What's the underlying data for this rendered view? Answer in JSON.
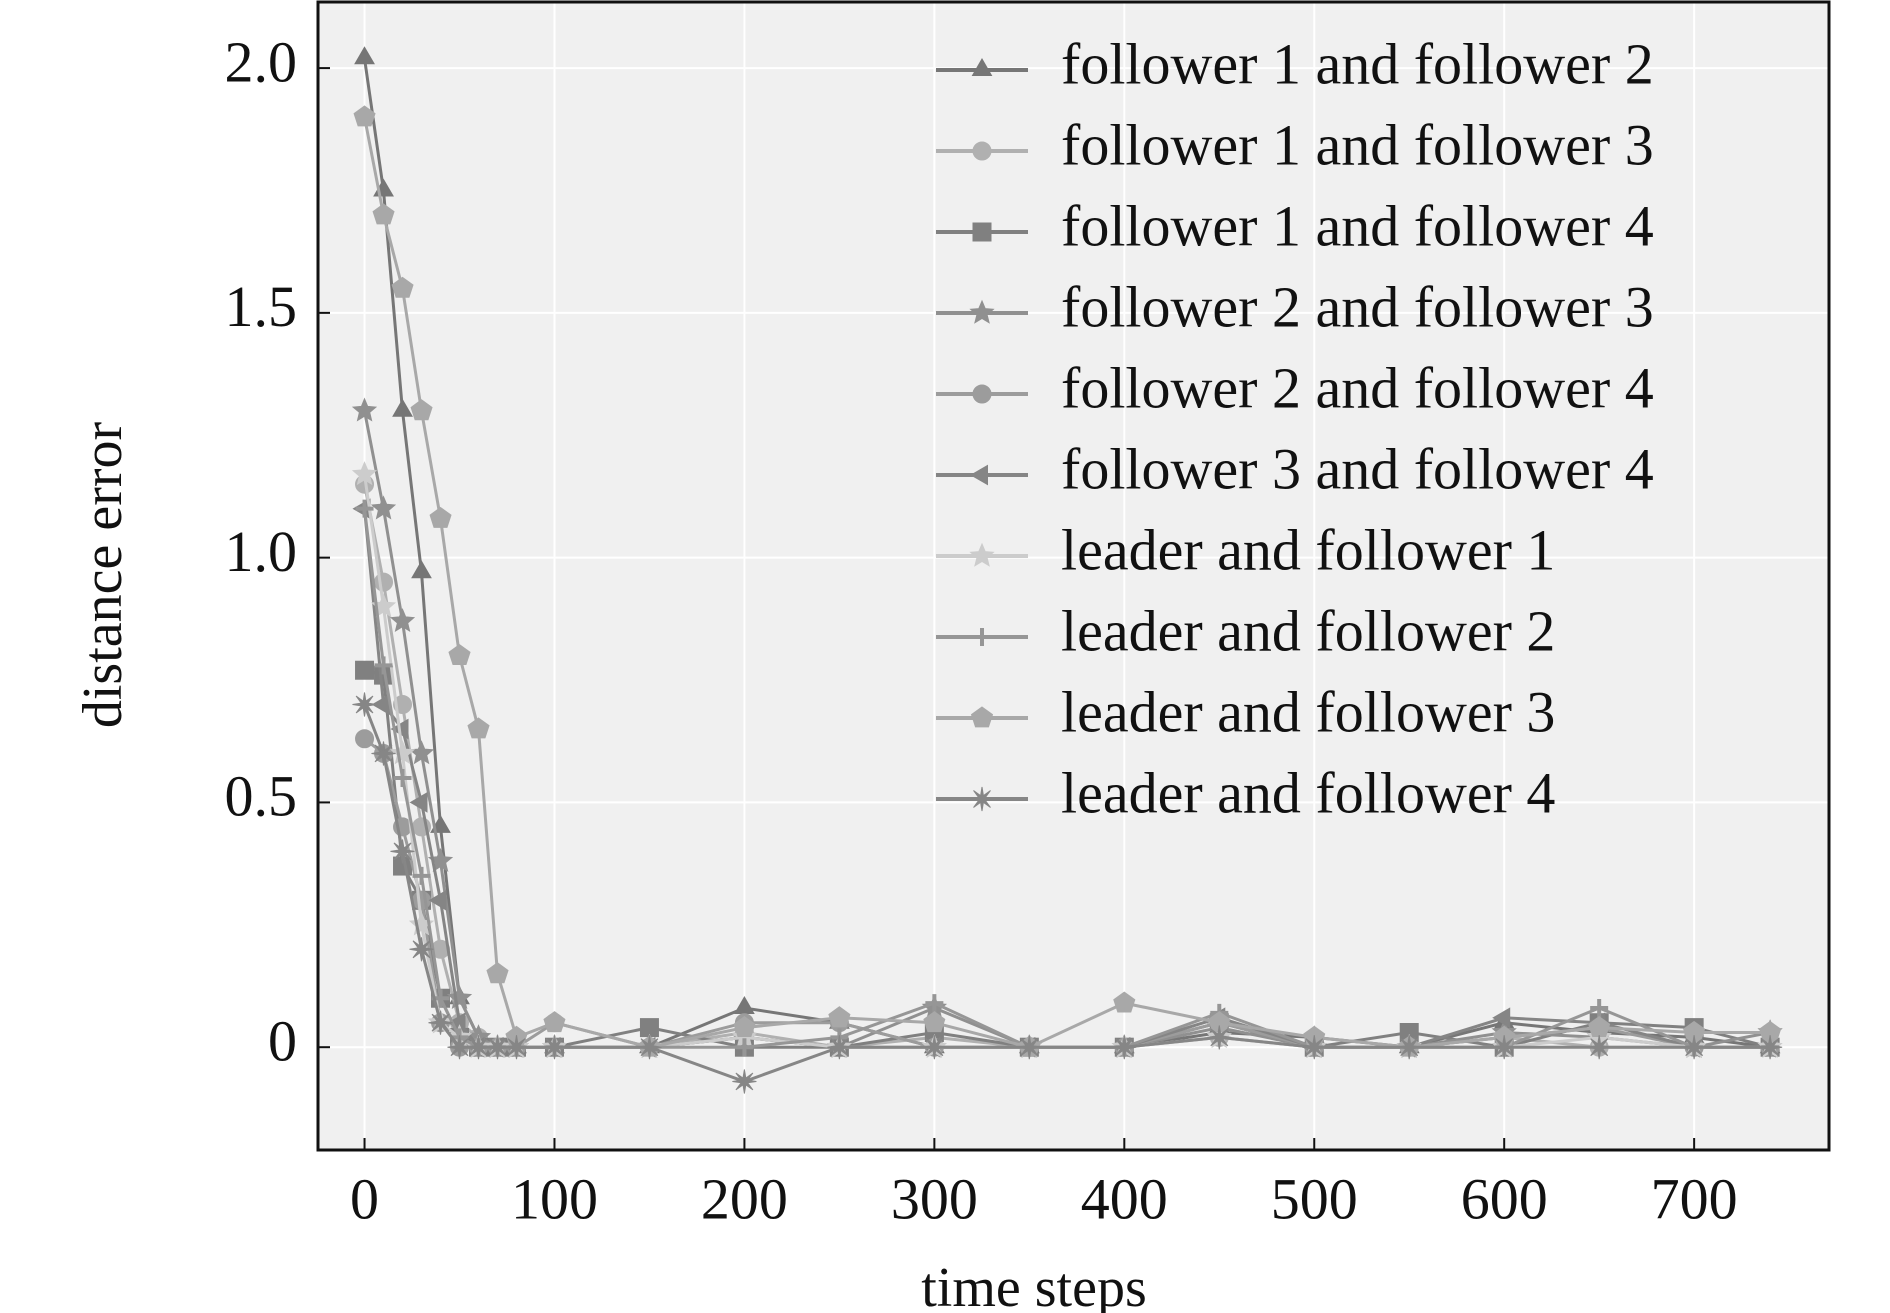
{
  "chart_data": {
    "type": "line",
    "xlabel": "time steps",
    "ylabel": "distance error",
    "x": [
      0,
      10,
      20,
      30,
      40,
      50,
      60,
      70,
      80,
      100,
      150,
      200,
      250,
      300,
      350,
      400,
      450,
      500,
      550,
      600,
      650,
      700,
      740
    ],
    "series": [
      {
        "name": "follower 1 and follower 2",
        "color": "#767676",
        "marker": "triangle",
        "values": [
          2.02,
          1.75,
          1.3,
          0.97,
          0.45,
          0.1,
          0.02,
          0,
          0,
          0,
          0,
          0.08,
          0.05,
          0,
          0,
          0,
          0.03,
          0.02,
          0,
          0.05,
          0.03,
          0.02,
          0
        ]
      },
      {
        "name": "follower 1 and follower 3",
        "color": "#b0b0b0",
        "marker": "circle",
        "values": [
          1.15,
          0.95,
          0.7,
          0.45,
          0.2,
          0.05,
          0.02,
          0,
          0,
          0,
          0,
          0.03,
          0,
          0.02,
          0,
          0,
          0.02,
          0,
          0,
          0.02,
          0,
          0,
          0
        ]
      },
      {
        "name": "follower 1 and follower 4",
        "color": "#808080",
        "marker": "square",
        "values": [
          0.77,
          0.76,
          0.37,
          0.3,
          0.1,
          0.02,
          0,
          0,
          0,
          0,
          0.04,
          0,
          0,
          0.03,
          0,
          0,
          0.05,
          0,
          0.03,
          0,
          0.05,
          0.04,
          0
        ]
      },
      {
        "name": "follower 2 and follower 3",
        "color": "#909090",
        "marker": "star",
        "values": [
          1.3,
          1.1,
          0.87,
          0.6,
          0.38,
          0.1,
          0.02,
          0,
          0,
          0,
          0,
          0.02,
          0,
          0.08,
          0,
          0,
          0.04,
          0,
          0,
          0.03,
          0.02,
          0,
          0.03
        ]
      },
      {
        "name": "follower 2 and follower 4",
        "color": "#9c9c9c",
        "marker": "circle",
        "values": [
          0.63,
          0.6,
          0.45,
          0.3,
          0.05,
          0,
          0,
          0,
          0,
          0.05,
          0,
          0.05,
          0.05,
          0,
          0,
          0,
          0.05,
          0,
          0,
          0.02,
          0.04,
          0,
          0
        ]
      },
      {
        "name": "follower 3 and follower 4",
        "color": "#858585",
        "marker": "triangle-left",
        "values": [
          1.1,
          0.7,
          0.65,
          0.5,
          0.3,
          0.05,
          0,
          0,
          0,
          0,
          0,
          0.02,
          0,
          0,
          0,
          0,
          0.06,
          0,
          0,
          0.06,
          0.05,
          0,
          0
        ]
      },
      {
        "name": "leader and follower 1",
        "color": "#cccccc",
        "marker": "star",
        "values": [
          1.17,
          0.9,
          0.6,
          0.25,
          0.05,
          0.02,
          0,
          0,
          0,
          0,
          0,
          0.02,
          0,
          0,
          0,
          0,
          0.02,
          0,
          0,
          0,
          0.02,
          0,
          0
        ]
      },
      {
        "name": "leader and follower 2",
        "color": "#969696",
        "marker": "plus",
        "values": [
          1.1,
          0.78,
          0.55,
          0.35,
          0.1,
          0.02,
          0,
          0,
          0,
          0,
          0,
          0,
          0.02,
          0.09,
          0,
          0,
          0.07,
          0,
          0,
          0,
          0.08,
          0,
          0
        ]
      },
      {
        "name": "leader and follower 3",
        "color": "#a8a8a8",
        "marker": "pentagon",
        "values": [
          1.9,
          1.7,
          1.55,
          1.3,
          1.08,
          0.8,
          0.65,
          0.15,
          0.02,
          0.05,
          0,
          0.04,
          0.06,
          0.05,
          0,
          0.09,
          0.05,
          0.02,
          0,
          0.02,
          0.04,
          0.03,
          0.03
        ]
      },
      {
        "name": "leader and follower 4",
        "color": "#868686",
        "marker": "asterisk",
        "values": [
          0.7,
          0.6,
          0.4,
          0.2,
          0.05,
          0,
          0,
          0,
          0,
          0,
          0,
          -0.07,
          0,
          0,
          0,
          0,
          0.02,
          0,
          0,
          0,
          0,
          0,
          0
        ]
      }
    ],
    "xlim": [
      -24.5,
      771
    ],
    "ylim": [
      -0.21,
      2.135
    ],
    "xticks": [
      0,
      100,
      200,
      300,
      400,
      500,
      600,
      700
    ],
    "yticks": [
      0,
      0.5,
      {
        "value": 1,
        "label": "1.0"
      },
      1.5,
      {
        "value": 2,
        "label": "2.0"
      }
    ],
    "grid": true
  }
}
